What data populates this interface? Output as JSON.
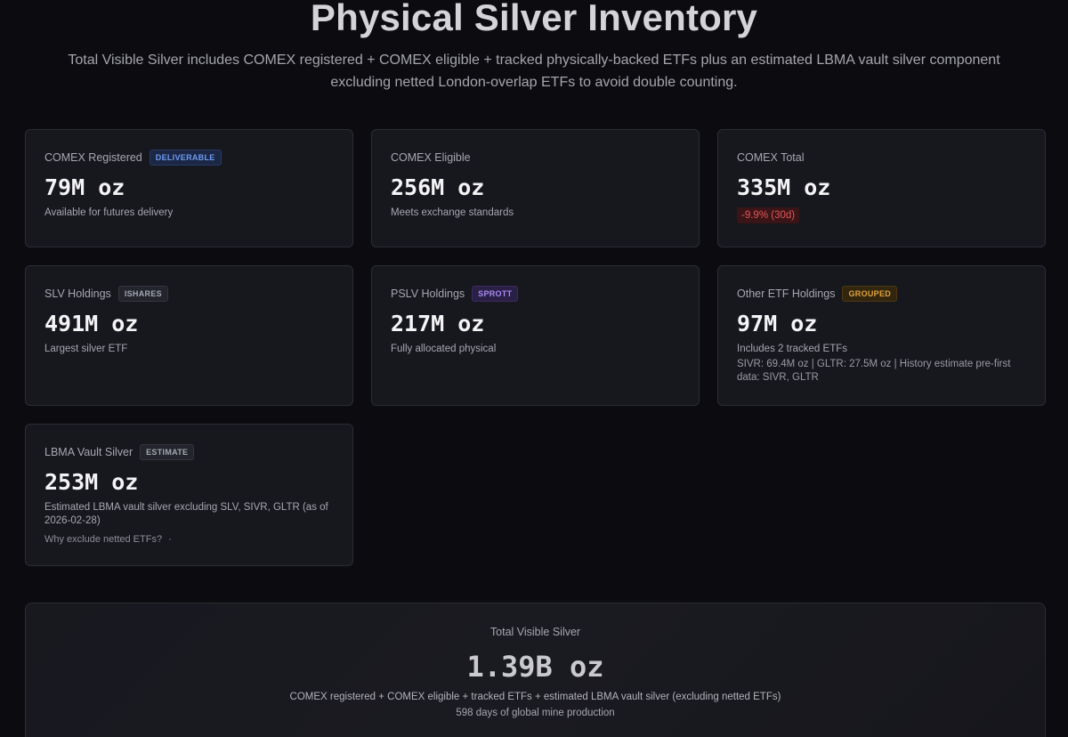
{
  "header": {
    "title": "Physical Silver Inventory",
    "subtitle": "Total Visible Silver includes COMEX registered + COMEX eligible + tracked physically-backed ETFs plus an estimated LBMA vault silver component excluding netted London-overlap ETFs to avoid double counting."
  },
  "cards": {
    "comex_registered": {
      "label": "COMEX Registered",
      "badge": "DELIVERABLE",
      "value": "79M oz",
      "description": "Available for futures delivery"
    },
    "comex_eligible": {
      "label": "COMEX Eligible",
      "value": "256M oz",
      "description": "Meets exchange standards"
    },
    "comex_total": {
      "label": "COMEX Total",
      "value": "335M oz",
      "change": "-9.9% (30d)"
    },
    "slv": {
      "label": "SLV Holdings",
      "badge": "ISHARES",
      "value": "491M oz",
      "description": "Largest silver ETF"
    },
    "pslv": {
      "label": "PSLV Holdings",
      "badge": "SPROTT",
      "value": "217M oz",
      "description": "Fully allocated physical"
    },
    "other_etf": {
      "label": "Other ETF Holdings",
      "badge": "GROUPED",
      "value": "97M oz",
      "description": "Includes 2 tracked ETFs",
      "note": "SIVR: 69.4M oz | GLTR: 27.5M oz | History estimate pre-first data: SIVR, GLTR"
    },
    "lbma": {
      "label": "LBMA Vault Silver",
      "badge": "ESTIMATE",
      "value": "253M oz",
      "description": "Estimated LBMA vault silver excluding SLV, SIVR, GLTR (as of 2026-02-28)",
      "link": "Why exclude netted ETFs?",
      "link_marker": "·"
    }
  },
  "total": {
    "label": "Total Visible Silver",
    "value": "1.39B oz",
    "description": "COMEX registered + COMEX eligible + tracked ETFs + estimated LBMA vault silver (excluding netted ETFs)",
    "sub": "598 days of global mine production"
  },
  "colors": {
    "background": "#0c0c10",
    "card": "#17171e",
    "negative": "#e25555",
    "badge_deliverable": "#6f9bf0",
    "badge_sprott": "#a98af4",
    "badge_grouped": "#e0a33a"
  }
}
